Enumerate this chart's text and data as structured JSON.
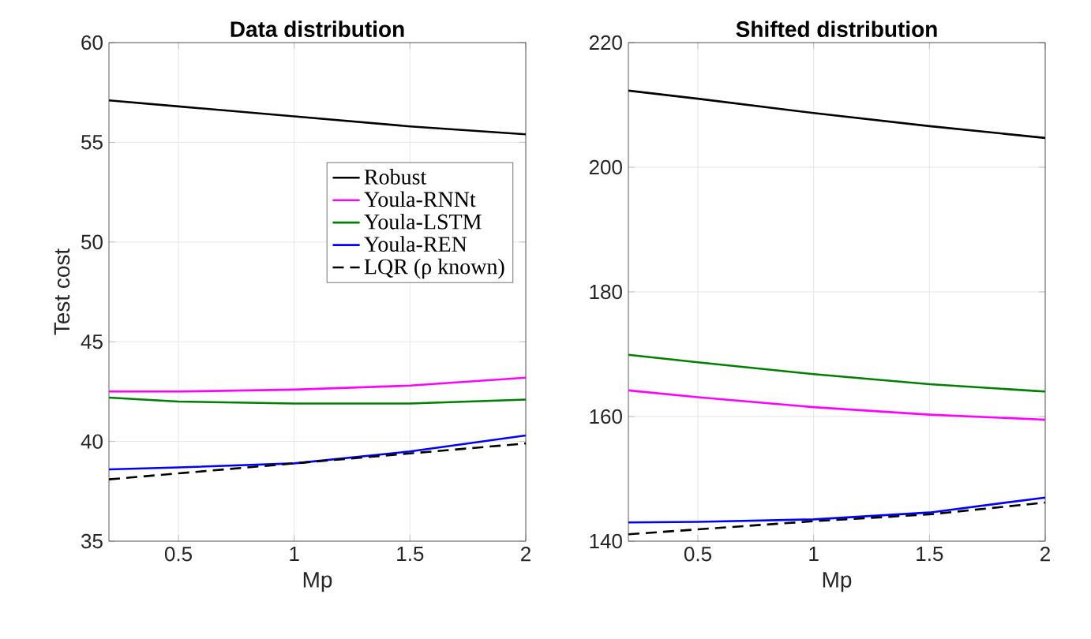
{
  "chart_data": [
    {
      "type": "line",
      "title": "Data distribution",
      "xlabel": "Mp",
      "ylabel": "Test cost",
      "x": [
        0.2,
        0.5,
        1,
        1.5,
        2
      ],
      "xlim": [
        0.2,
        2
      ],
      "xticks": [
        0.5,
        1,
        1.5,
        2
      ],
      "ylim": [
        35,
        60
      ],
      "yticks": [
        35,
        40,
        45,
        50,
        55,
        60
      ],
      "grid": true,
      "legend": "right",
      "series": [
        {
          "name": "Robust",
          "color": "#000000",
          "values": [
            57.1,
            56.8,
            56.3,
            55.8,
            55.4
          ]
        },
        {
          "name": "Youla-RNNt",
          "color": "#ff00ff",
          "values": [
            42.5,
            42.5,
            42.6,
            42.8,
            43.2
          ]
        },
        {
          "name": "Youla-LSTM",
          "color": "#008000",
          "values": [
            42.2,
            42.0,
            41.9,
            41.9,
            42.1
          ]
        },
        {
          "name": "Youla-REN",
          "color": "#0000ff",
          "values": [
            38.6,
            38.7,
            38.9,
            39.5,
            40.3
          ]
        },
        {
          "name": "LQR (ρ known)",
          "color": "#000000",
          "line_style": "dashed",
          "values": [
            38.1,
            38.4,
            38.9,
            39.4,
            39.9
          ]
        }
      ]
    },
    {
      "type": "line",
      "title": "Shifted distribution",
      "xlabel": "Mp",
      "x": [
        0.2,
        0.5,
        1,
        1.5,
        2
      ],
      "xlim": [
        0.2,
        2
      ],
      "xticks": [
        0.5,
        1,
        1.5,
        2
      ],
      "ylim": [
        140,
        220
      ],
      "yticks": [
        140,
        160,
        180,
        200,
        220
      ],
      "grid": true,
      "series": [
        {
          "color": "#000000",
          "values": [
            212.3,
            211.0,
            208.7,
            206.6,
            204.7
          ]
        },
        {
          "color": "#ff00ff",
          "values": [
            164.2,
            163.1,
            161.5,
            160.3,
            159.5
          ]
        },
        {
          "color": "#008000",
          "values": [
            169.9,
            168.7,
            166.8,
            165.2,
            164.0
          ]
        },
        {
          "color": "#0000ff",
          "values": [
            143.0,
            143.1,
            143.5,
            144.6,
            147.0
          ]
        },
        {
          "color": "#000000",
          "line_style": "dashed",
          "values": [
            141.1,
            141.9,
            143.2,
            144.3,
            146.2
          ]
        }
      ]
    }
  ]
}
